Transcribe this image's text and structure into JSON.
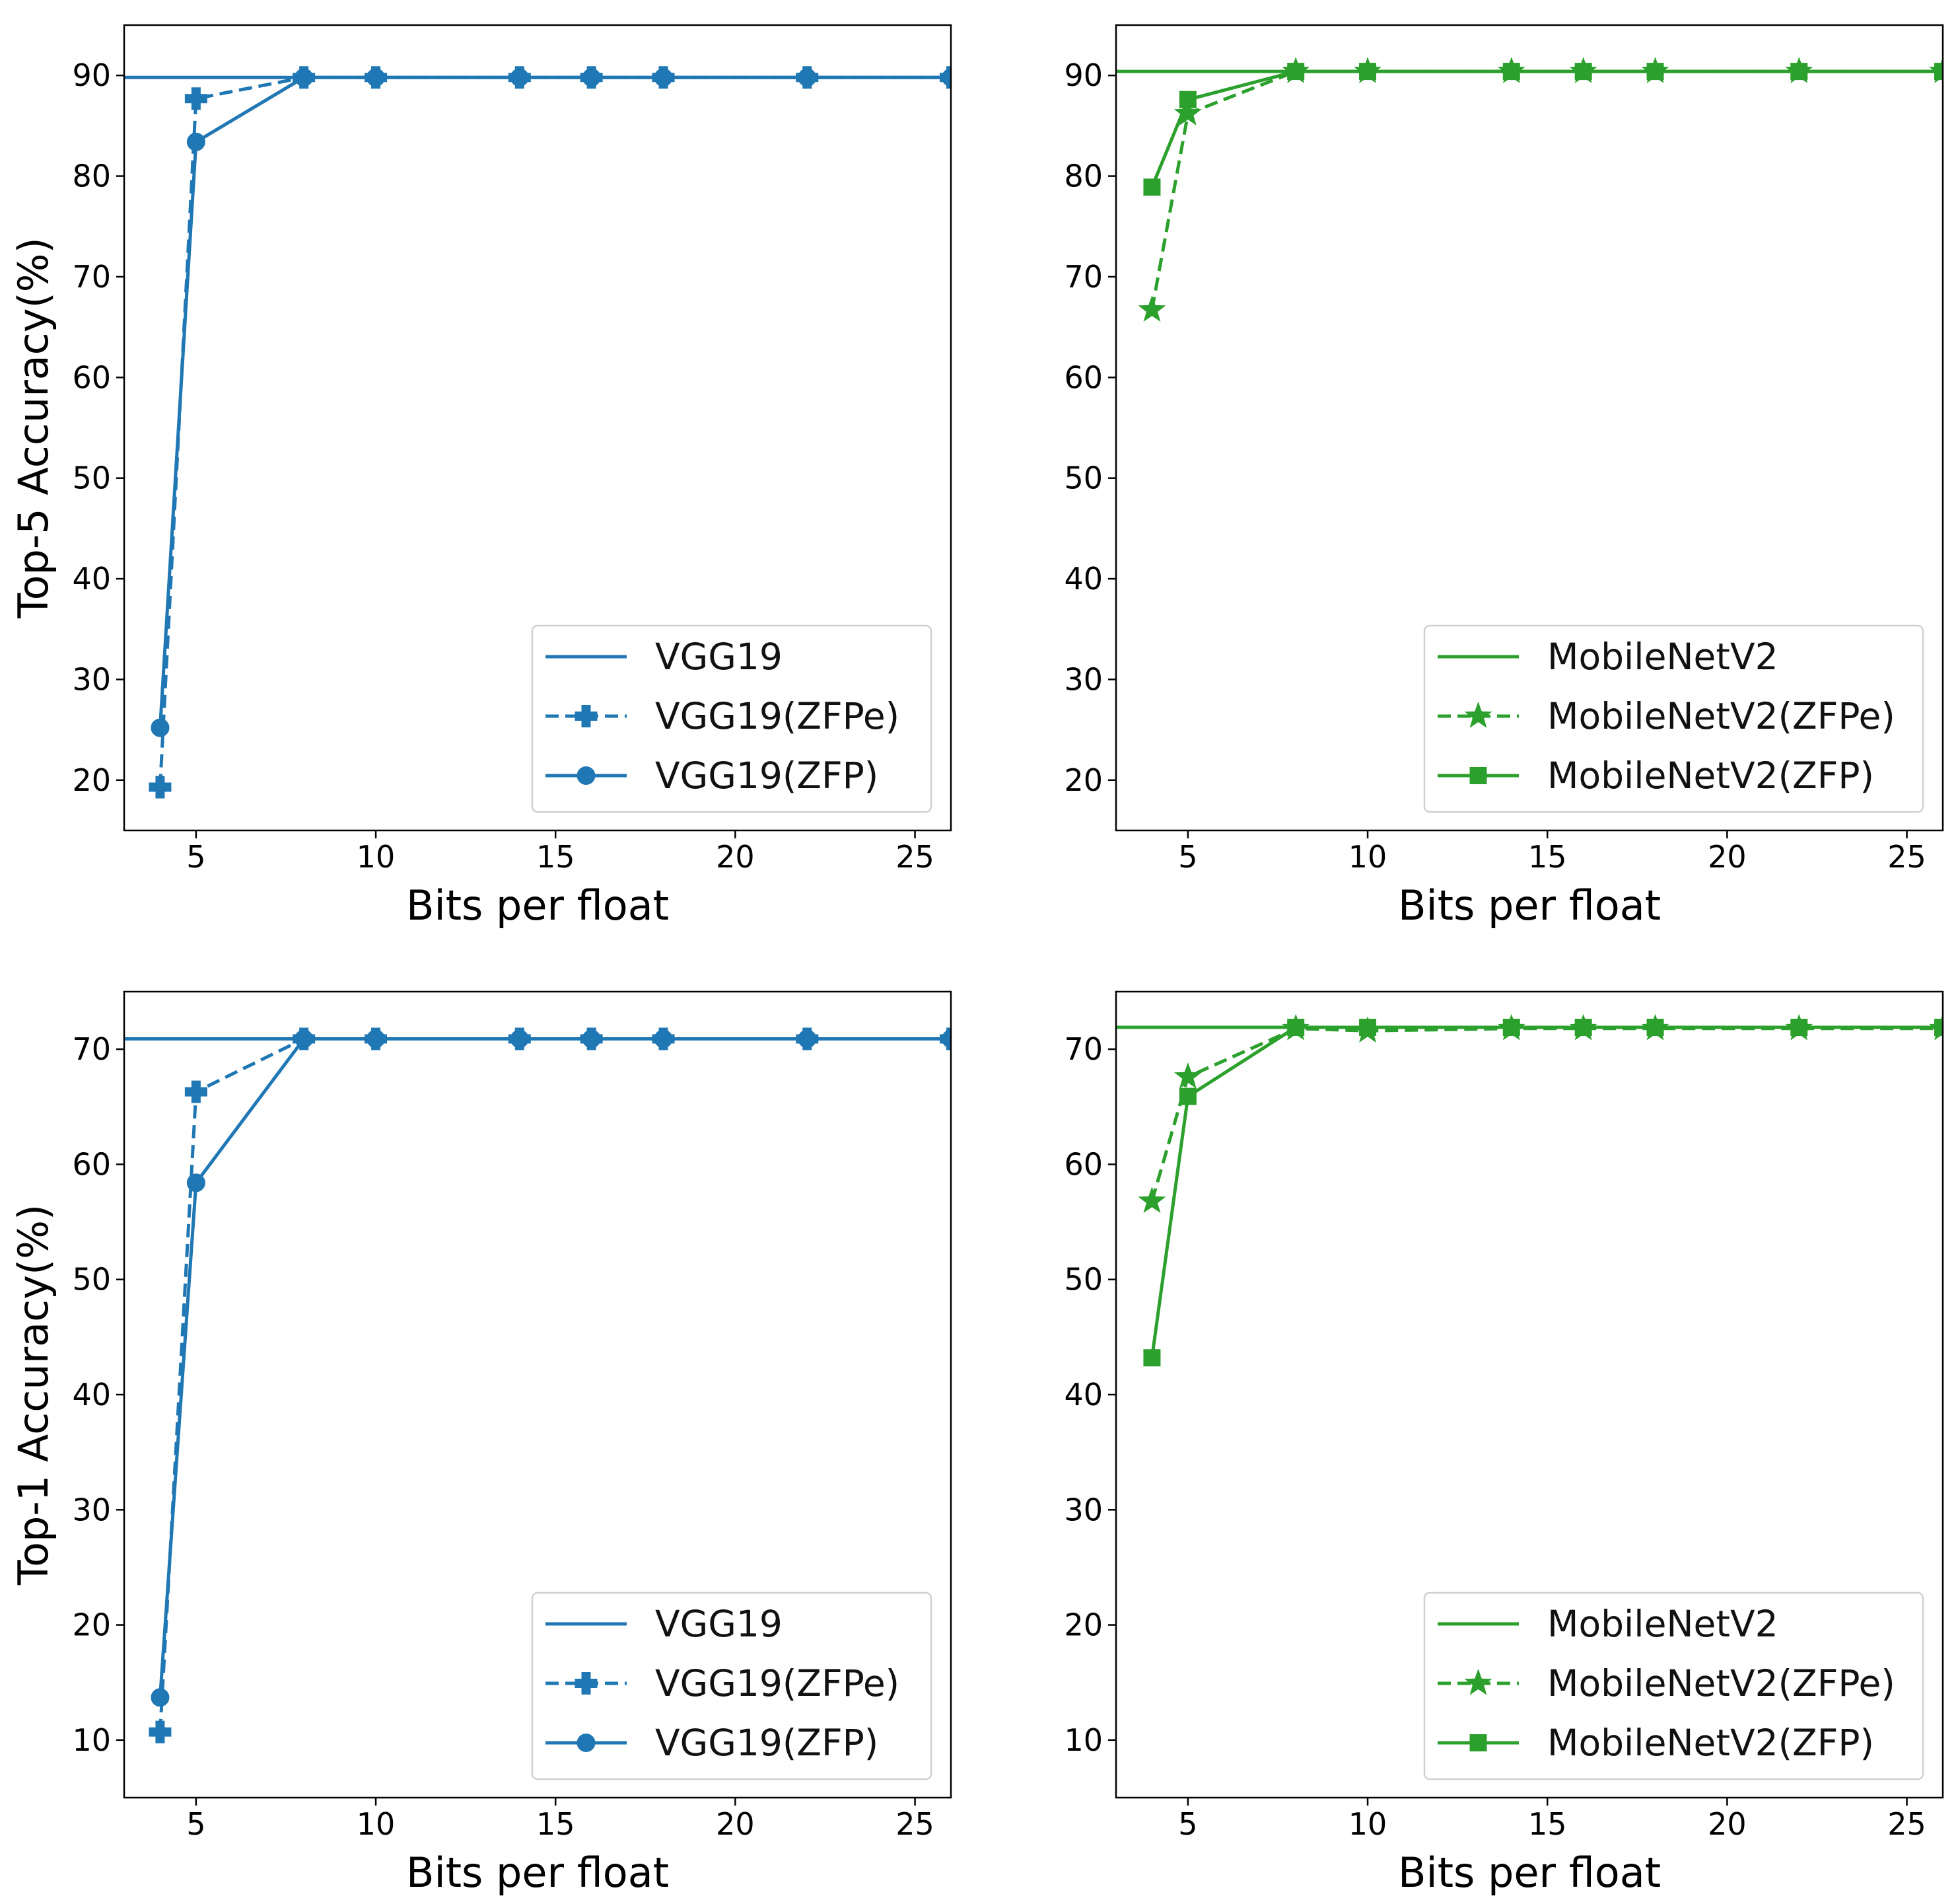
{
  "chart_data": [
    {
      "id": "top5-vgg",
      "type": "line",
      "xlabel": "Bits per float",
      "ylabel": "Top-5 Accuracy(%)",
      "xlim": [
        3,
        26
      ],
      "ylim": [
        15,
        95
      ],
      "xticks": [
        5,
        10,
        15,
        20,
        25
      ],
      "yticks": [
        20,
        30,
        40,
        50,
        60,
        70,
        80,
        90
      ],
      "color": "#1f77b4",
      "legend_loc": "lower-right",
      "baseline": {
        "name": "VGG19",
        "value": 89.8
      },
      "series": [
        {
          "name": "VGG19(ZFPe)",
          "style": "dashed",
          "marker": "plus",
          "x": [
            4,
            5,
            8,
            10,
            14,
            16,
            18,
            22,
            26
          ],
          "y": [
            19.3,
            87.7,
            89.8,
            89.8,
            89.8,
            89.8,
            89.8,
            89.8,
            89.8
          ]
        },
        {
          "name": "VGG19(ZFP)",
          "style": "solid",
          "marker": "circle",
          "x": [
            4,
            5,
            8,
            10,
            14,
            16,
            18,
            22,
            26
          ],
          "y": [
            25.2,
            83.4,
            89.8,
            89.8,
            89.8,
            89.8,
            89.8,
            89.8,
            89.8
          ]
        }
      ]
    },
    {
      "id": "top5-mobilenet",
      "type": "line",
      "xlabel": "Bits per float",
      "ylabel": "",
      "xlim": [
        3,
        26
      ],
      "ylim": [
        15,
        95
      ],
      "xticks": [
        5,
        10,
        15,
        20,
        25
      ],
      "yticks": [
        20,
        30,
        40,
        50,
        60,
        70,
        80,
        90
      ],
      "color": "#2ca02c",
      "legend_loc": "lower-right",
      "baseline": {
        "name": "MobileNetV2",
        "value": 90.4
      },
      "series": [
        {
          "name": "MobileNetV2(ZFPe)",
          "style": "dashed",
          "marker": "star",
          "x": [
            4,
            5,
            8,
            10,
            14,
            16,
            18,
            22,
            26
          ],
          "y": [
            66.7,
            86.2,
            90.4,
            90.4,
            90.4,
            90.4,
            90.4,
            90.4,
            90.4
          ]
        },
        {
          "name": "MobileNetV2(ZFP)",
          "style": "solid",
          "marker": "square",
          "x": [
            4,
            5,
            8,
            10,
            14,
            16,
            18,
            22,
            26
          ],
          "y": [
            78.9,
            87.6,
            90.4,
            90.4,
            90.4,
            90.4,
            90.4,
            90.4,
            90.4
          ]
        }
      ]
    },
    {
      "id": "top1-vgg",
      "type": "line",
      "xlabel": "Bits per float",
      "ylabel": "Top-1 Accuracy(%)",
      "xlim": [
        3,
        26
      ],
      "ylim": [
        5,
        75
      ],
      "xticks": [
        5,
        10,
        15,
        20,
        25
      ],
      "yticks": [
        10,
        20,
        30,
        40,
        50,
        60,
        70
      ],
      "color": "#1f77b4",
      "legend_loc": "lower-right",
      "baseline": {
        "name": "VGG19",
        "value": 70.9
      },
      "series": [
        {
          "name": "VGG19(ZFPe)",
          "style": "dashed",
          "marker": "plus",
          "x": [
            4,
            5,
            8,
            10,
            14,
            16,
            18,
            22,
            26
          ],
          "y": [
            10.7,
            66.3,
            70.9,
            70.9,
            70.9,
            70.9,
            70.9,
            70.9,
            70.9
          ]
        },
        {
          "name": "VGG19(ZFP)",
          "style": "solid",
          "marker": "circle",
          "x": [
            4,
            5,
            8,
            10,
            14,
            16,
            18,
            22,
            26
          ],
          "y": [
            13.7,
            58.4,
            70.9,
            70.9,
            70.9,
            70.9,
            70.9,
            70.9,
            70.9
          ]
        }
      ]
    },
    {
      "id": "top1-mobilenet",
      "type": "line",
      "xlabel": "Bits per float",
      "ylabel": "",
      "xlim": [
        3,
        26
      ],
      "ylim": [
        5,
        75
      ],
      "xticks": [
        5,
        10,
        15,
        20,
        25
      ],
      "yticks": [
        10,
        20,
        30,
        40,
        50,
        60,
        70
      ],
      "color": "#2ca02c",
      "legend_loc": "lower-right",
      "baseline": {
        "name": "MobileNetV2",
        "value": 71.9
      },
      "series": [
        {
          "name": "MobileNetV2(ZFPe)",
          "style": "dashed",
          "marker": "star",
          "x": [
            4,
            5,
            8,
            10,
            14,
            16,
            18,
            22,
            26
          ],
          "y": [
            56.8,
            67.6,
            71.8,
            71.6,
            71.8,
            71.8,
            71.8,
            71.8,
            71.8
          ]
        },
        {
          "name": "MobileNetV2(ZFP)",
          "style": "solid",
          "marker": "square",
          "x": [
            4,
            5,
            8,
            10,
            14,
            16,
            18,
            22,
            26
          ],
          "y": [
            43.2,
            65.9,
            71.9,
            71.9,
            71.9,
            71.9,
            71.9,
            71.9,
            71.9
          ]
        }
      ]
    }
  ]
}
